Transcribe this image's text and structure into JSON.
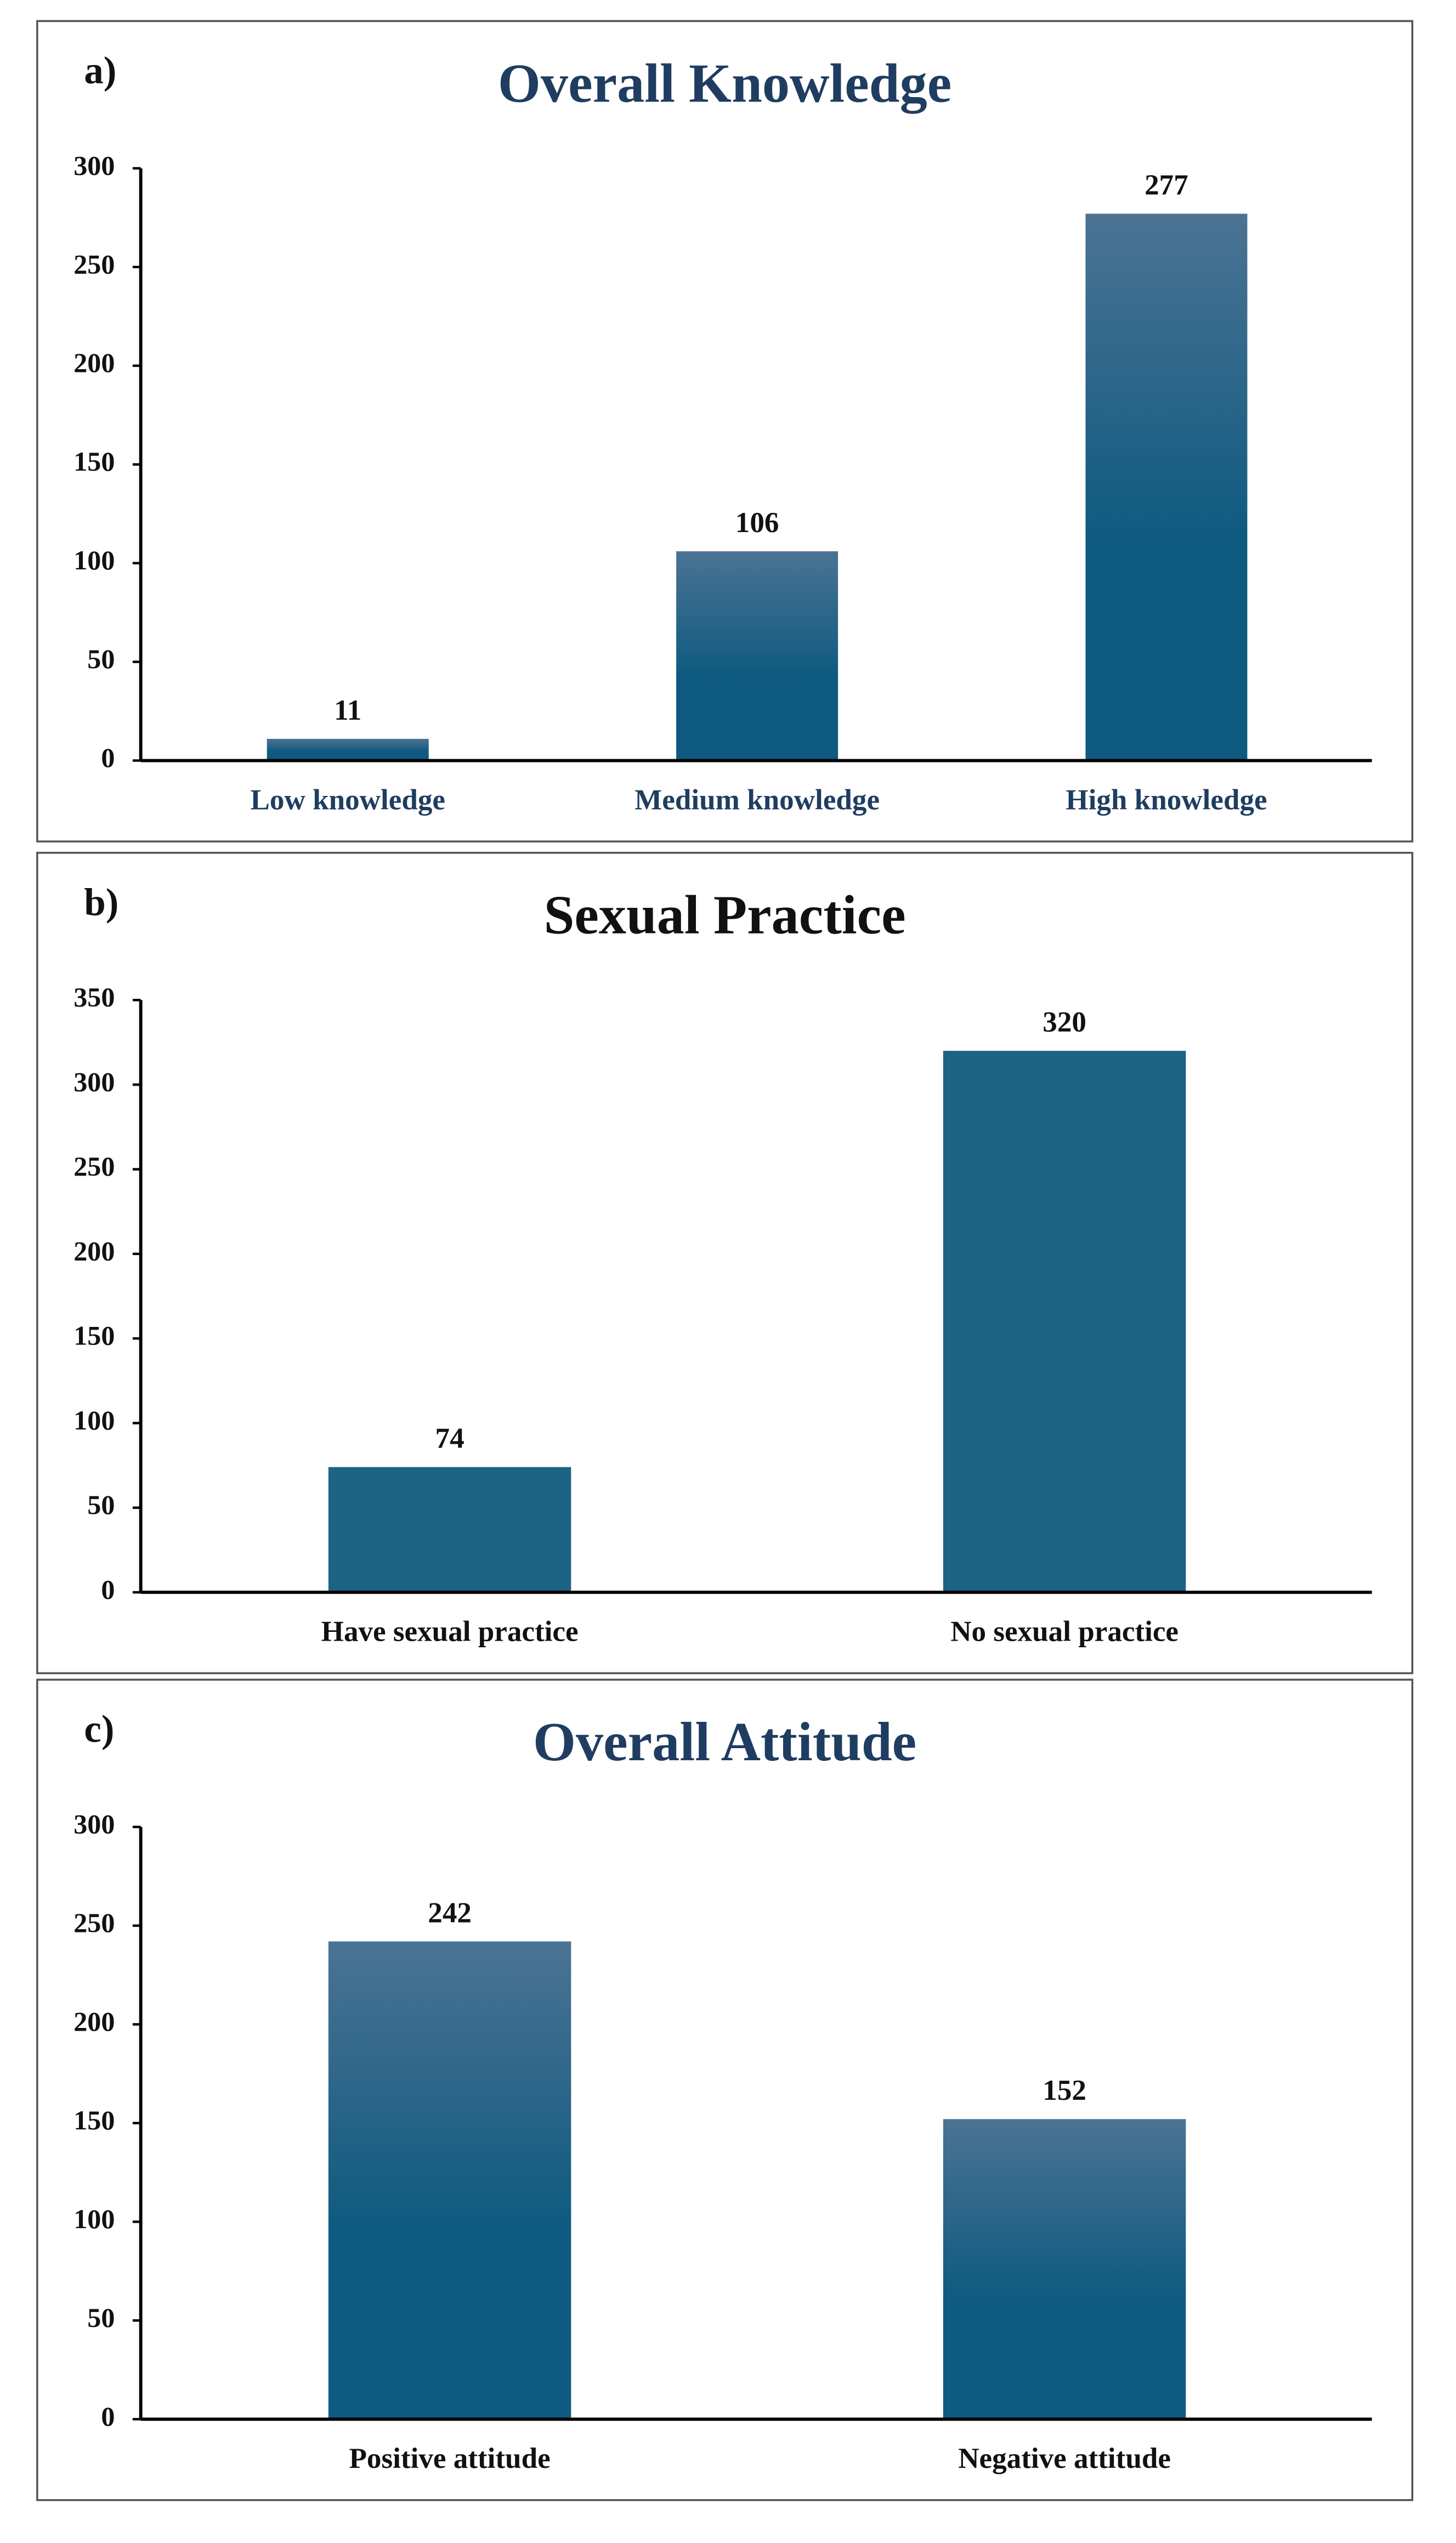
{
  "chart_data": [
    {
      "type": "bar",
      "panel_label": "a)",
      "title": "Overall Knowledge",
      "title_color": "#1f3d60",
      "label_color": "#1f3d60",
      "categories": [
        "Low knowledge",
        "Medium knowledge",
        "High knowledge"
      ],
      "values": [
        11,
        106,
        277
      ],
      "colors": [
        "#4b7393",
        "#0e5a80"
      ],
      "ylim": [
        0,
        300
      ],
      "yticks": [
        0,
        50,
        100,
        150,
        200,
        250,
        300
      ]
    },
    {
      "type": "bar",
      "panel_label": "b)",
      "title": "Sexual Practice",
      "title_color": "#111111",
      "label_color": "#111111",
      "categories": [
        "Have sexual practice",
        "No sexual practice"
      ],
      "values": [
        74,
        320
      ],
      "colors": [
        "#1d6383",
        "#1d6383"
      ],
      "ylim": [
        0,
        350
      ],
      "yticks": [
        0,
        50,
        100,
        150,
        200,
        250,
        300,
        350
      ]
    },
    {
      "type": "bar",
      "panel_label": "c)",
      "title": "Overall Attitude",
      "title_color": "#1f3d60",
      "label_color": "#111111",
      "categories": [
        "Positive attitude",
        "Negative attitude"
      ],
      "values": [
        242,
        152
      ],
      "colors": [
        "#4b7393",
        "#0e5a80"
      ],
      "ylim": [
        0,
        300
      ],
      "yticks": [
        0,
        50,
        100,
        150,
        200,
        250,
        300
      ]
    }
  ]
}
